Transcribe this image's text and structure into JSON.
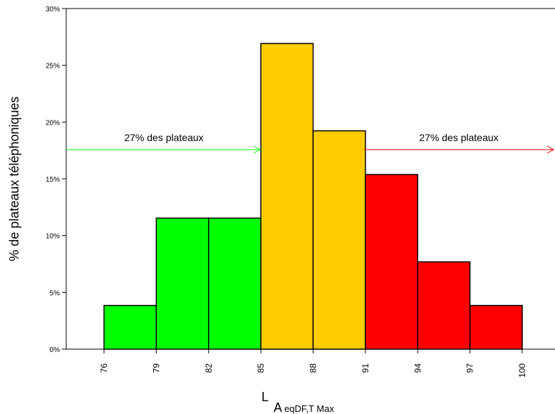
{
  "chart_data": {
    "type": "bar",
    "title": "",
    "ylabel": "% de plateaux téléphoniques",
    "xlabel": {
      "main": "L",
      "sub1": "A",
      "sub2": "eqDF,T Max"
    },
    "x_ticks": [
      "76",
      "79",
      "82",
      "85",
      "88",
      "91",
      "94",
      "97",
      "100"
    ],
    "y_ticks": [
      "0%",
      "5%",
      "10%",
      "15%",
      "20%",
      "25%",
      "30%"
    ],
    "ylim": [
      0,
      30
    ],
    "bins": [
      {
        "from": 76,
        "to": 79,
        "value": 3.85,
        "color": "#00ff00"
      },
      {
        "from": 79,
        "to": 82,
        "value": 11.54,
        "color": "#00ff00"
      },
      {
        "from": 82,
        "to": 85,
        "value": 11.54,
        "color": "#00ff00"
      },
      {
        "from": 85,
        "to": 88,
        "value": 26.92,
        "color": "#ffcc00"
      },
      {
        "from": 88,
        "to": 91,
        "value": 19.23,
        "color": "#ffcc00"
      },
      {
        "from": 91,
        "to": 94,
        "value": 15.38,
        "color": "#ff0000"
      },
      {
        "from": 94,
        "to": 97,
        "value": 7.69,
        "color": "#ff0000"
      },
      {
        "from": 97,
        "to": 100,
        "value": 3.85,
        "color": "#ff0000"
      }
    ],
    "annotations": [
      {
        "text": "27% des plateaux",
        "color": "#00ff00",
        "direction": "right"
      },
      {
        "text": "27% des plateaux",
        "color": "#ff0000",
        "direction": "right"
      }
    ],
    "grid": false
  }
}
